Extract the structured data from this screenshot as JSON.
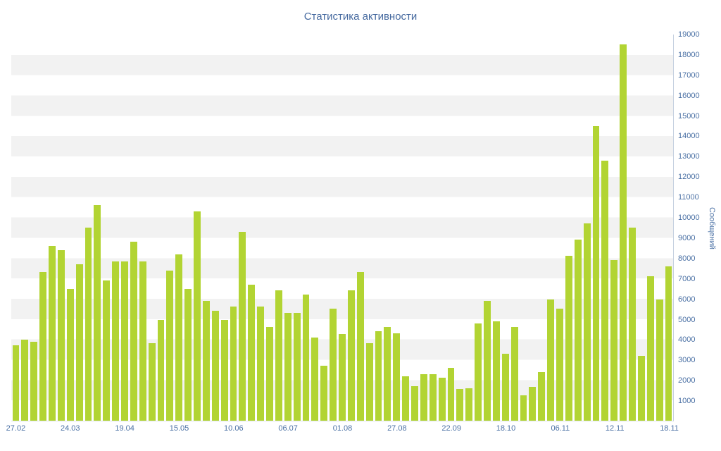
{
  "chart": {
    "colors": {
      "bar": "#b2d433",
      "band": "#f2f2f2",
      "background": "#ffffff",
      "axis_label": "#4a70a4",
      "title": "#45699f",
      "axis_line": "#c5d0e0"
    }
  },
  "chart_data": {
    "type": "bar",
    "title": "Статистика активности",
    "xlabel": "",
    "ylabel": "Сообщений",
    "ylim": [
      0,
      19000
    ],
    "y_tick_interval": 1000,
    "y_tick_labels": [
      "1000",
      "2000",
      "3000",
      "4000",
      "5000",
      "6000",
      "7000",
      "8000",
      "9000",
      "10000",
      "11000",
      "12000",
      "13000",
      "14000",
      "15000",
      "16000",
      "17000",
      "18000",
      "19000"
    ],
    "x_tick_labels": [
      "27.02",
      "24.03",
      "19.04",
      "15.05",
      "10.06",
      "06.07",
      "01.08",
      "27.08",
      "22.09",
      "18.10",
      "06.11",
      "12.11",
      "18.11"
    ],
    "x_tick_positions": [
      0,
      6,
      12,
      18,
      24,
      30,
      36,
      42,
      48,
      54,
      60,
      66,
      72
    ],
    "grid": "alternating-horizontal-bands",
    "legend": false,
    "values": [
      3700,
      4000,
      3900,
      7300,
      8600,
      8400,
      6500,
      7700,
      9500,
      10600,
      6900,
      7850,
      7850,
      8800,
      7850,
      3800,
      4950,
      7400,
      8200,
      6500,
      10300,
      5900,
      5400,
      4950,
      5600,
      9300,
      6700,
      5600,
      4600,
      6400,
      5300,
      5300,
      6200,
      4100,
      2700,
      5500,
      4250,
      6400,
      7300,
      3800,
      4400,
      4600,
      4300,
      2200,
      1700,
      2300,
      2300,
      2100,
      2600,
      1550,
      1600,
      4800,
      5900,
      4900,
      3300,
      4600,
      1250,
      1650,
      2400,
      5950,
      5500,
      8100,
      8900,
      9700,
      14500,
      12800,
      7900,
      18500,
      9500,
      3200,
      7100,
      5950,
      7600
    ]
  }
}
